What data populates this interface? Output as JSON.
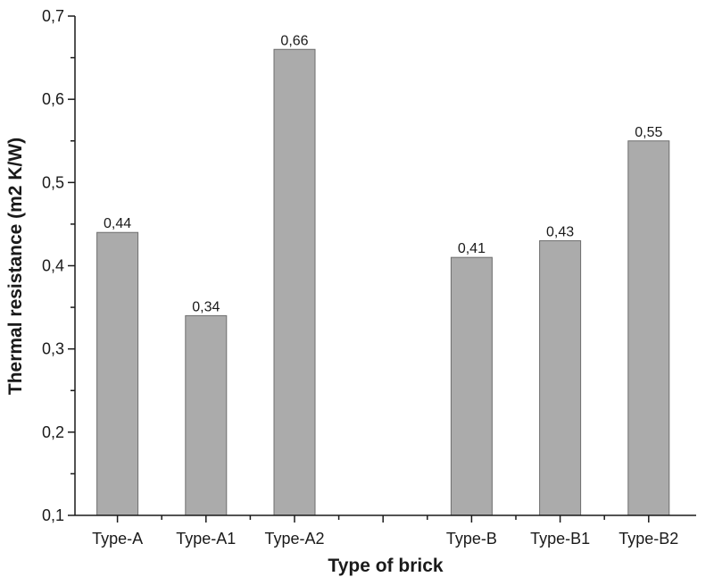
{
  "chart_data": {
    "type": "bar",
    "title": "",
    "xlabel": "Type of brick",
    "ylabel": "Thermal resistance (m2 K/W)",
    "ylim": [
      0.1,
      0.7
    ],
    "yticks": [
      "0,1",
      "0,2",
      "0,3",
      "0,4",
      "0,5",
      "0,6",
      "0,7"
    ],
    "categories": [
      "Type-A",
      "Type-A1",
      "Type-A2",
      "",
      "Type-B",
      "Type-B1",
      "Type-B2"
    ],
    "values": [
      0.44,
      0.34,
      0.66,
      null,
      0.41,
      0.43,
      0.55
    ],
    "value_labels": [
      "0,44",
      "0,34",
      "0,66",
      "",
      "0,41",
      "0,43",
      "0,55"
    ],
    "grid": false,
    "bar_color": "#ababab",
    "bar_edge_color": "#6e6e6e",
    "axis_color": "#1a1a1a"
  }
}
